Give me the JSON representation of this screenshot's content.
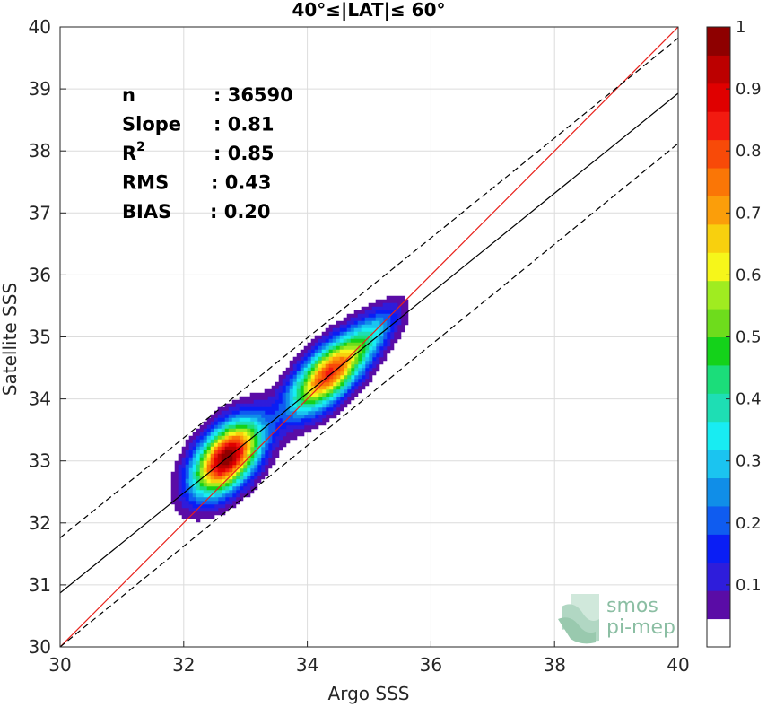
{
  "chart_data": {
    "type": "heatmap",
    "title": "40°≤|LAT|≤ 60°",
    "xlabel": "Argo SSS",
    "ylabel": "Satellite SSS",
    "xlim": [
      30,
      40
    ],
    "ylim": [
      30,
      40
    ],
    "xticks": [
      30,
      32,
      34,
      36,
      38,
      40
    ],
    "yticks": [
      30,
      31,
      32,
      33,
      34,
      35,
      36,
      37,
      38,
      39,
      40
    ],
    "grid": true,
    "stats": [
      {
        "label": "n",
        "value": ": 36590"
      },
      {
        "label": "Slope",
        "value": ": 0.81"
      },
      {
        "label": "R",
        "sup": "2",
        "value": ": 0.85"
      },
      {
        "label": "RMS",
        "value": ": 0.43"
      },
      {
        "label": "BIAS",
        "value": ": 0.20"
      }
    ],
    "lines": [
      {
        "kind": "one-to-one",
        "color": "#e8201a",
        "style": "solid",
        "x": [
          30,
          40
        ],
        "y": [
          30,
          40
        ]
      },
      {
        "kind": "regression",
        "color": "#000000",
        "style": "solid",
        "x": [
          30,
          40
        ],
        "y": [
          30.87,
          38.93
        ]
      },
      {
        "kind": "regression-upper",
        "color": "#000000",
        "style": "dashed",
        "x": [
          30,
          40
        ],
        "y": [
          31.76,
          39.82
        ]
      },
      {
        "kind": "regression-lower",
        "color": "#000000",
        "style": "dashed",
        "x": [
          30,
          40
        ],
        "y": [
          30.0,
          38.12
        ]
      }
    ],
    "density_peaks": [
      {
        "x": 32.7,
        "y": 33.05,
        "sx": 0.48,
        "sy": 0.27,
        "angle": 50,
        "amp": 1.0
      },
      {
        "x": 34.35,
        "y": 34.4,
        "sx": 0.55,
        "sy": 0.24,
        "angle": 45,
        "amp": 0.82
      },
      {
        "x": 35.1,
        "y": 35.1,
        "sx": 0.4,
        "sy": 0.18,
        "angle": 45,
        "amp": 0.2
      }
    ],
    "colorbar": {
      "min": 0,
      "max": 1,
      "ticks": [
        "0.1",
        "0.2",
        "0.3",
        "0.4",
        "0.5",
        "0.6",
        "0.7",
        "0.8",
        "0.9",
        "1"
      ],
      "colors": [
        "#ffffff",
        "#5a0ca6",
        "#2e1ddb",
        "#0a1ef5",
        "#0f5cf0",
        "#108ee8",
        "#1bc4f0",
        "#18ecf2",
        "#1edeb4",
        "#1bdd7a",
        "#14d21a",
        "#6edc1c",
        "#a0ec20",
        "#f6f61a",
        "#f8d00e",
        "#fb9e0a",
        "#fa7606",
        "#f84a08",
        "#f21a10",
        "#e00000",
        "#bc0000",
        "#8e0000"
      ]
    }
  },
  "watermark": {
    "line1": "smos",
    "line2": "pi-mep"
  }
}
